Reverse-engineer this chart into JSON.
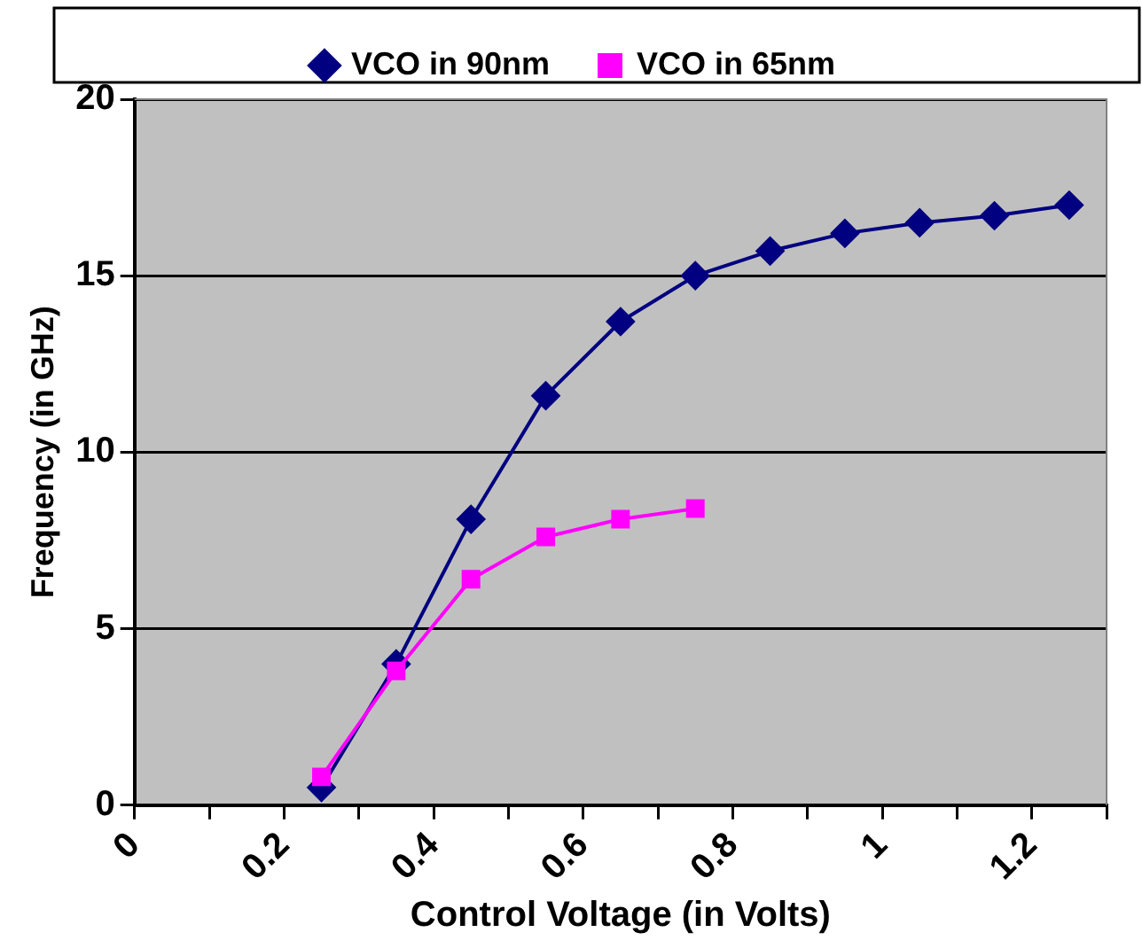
{
  "chart_data": {
    "type": "line",
    "xlabel": "Control Voltage (in Volts)",
    "ylabel": "Frequency (in GHz)",
    "xlim": [
      0,
      1.3
    ],
    "xticks": [
      0,
      {
        "value": 0.1,
        "label": null
      },
      0.2,
      {
        "value": 0.3,
        "label": null
      },
      0.4,
      {
        "value": 0.5,
        "label": null
      },
      0.6,
      {
        "value": 0.7,
        "label": null
      },
      0.8,
      {
        "value": 0.9,
        "label": null
      },
      1,
      {
        "value": 1.1,
        "label": null
      },
      1.2,
      {
        "value": 1.3,
        "label": null
      }
    ],
    "ylim": [
      0,
      20
    ],
    "yticks": [
      0,
      5,
      10,
      15,
      20
    ],
    "grid": "y",
    "legend": "top",
    "series": [
      {
        "name": "VCO in 90nm",
        "color": "#000080",
        "marker": "diamond",
        "x": [
          0.25,
          0.35,
          0.45,
          0.55,
          0.65,
          0.75,
          0.85,
          0.95,
          1.05,
          1.15,
          1.25
        ],
        "values": [
          0.5,
          4.0,
          8.1,
          11.6,
          13.7,
          15.0,
          15.7,
          16.2,
          16.5,
          16.7,
          17.0
        ]
      },
      {
        "name": "VCO in 65nm",
        "color": "#ff00ff",
        "marker": "square",
        "x": [
          0.25,
          0.35,
          0.45,
          0.55,
          0.65,
          0.75
        ],
        "values": [
          0.8,
          3.8,
          6.4,
          7.6,
          8.1,
          8.4
        ]
      }
    ]
  }
}
